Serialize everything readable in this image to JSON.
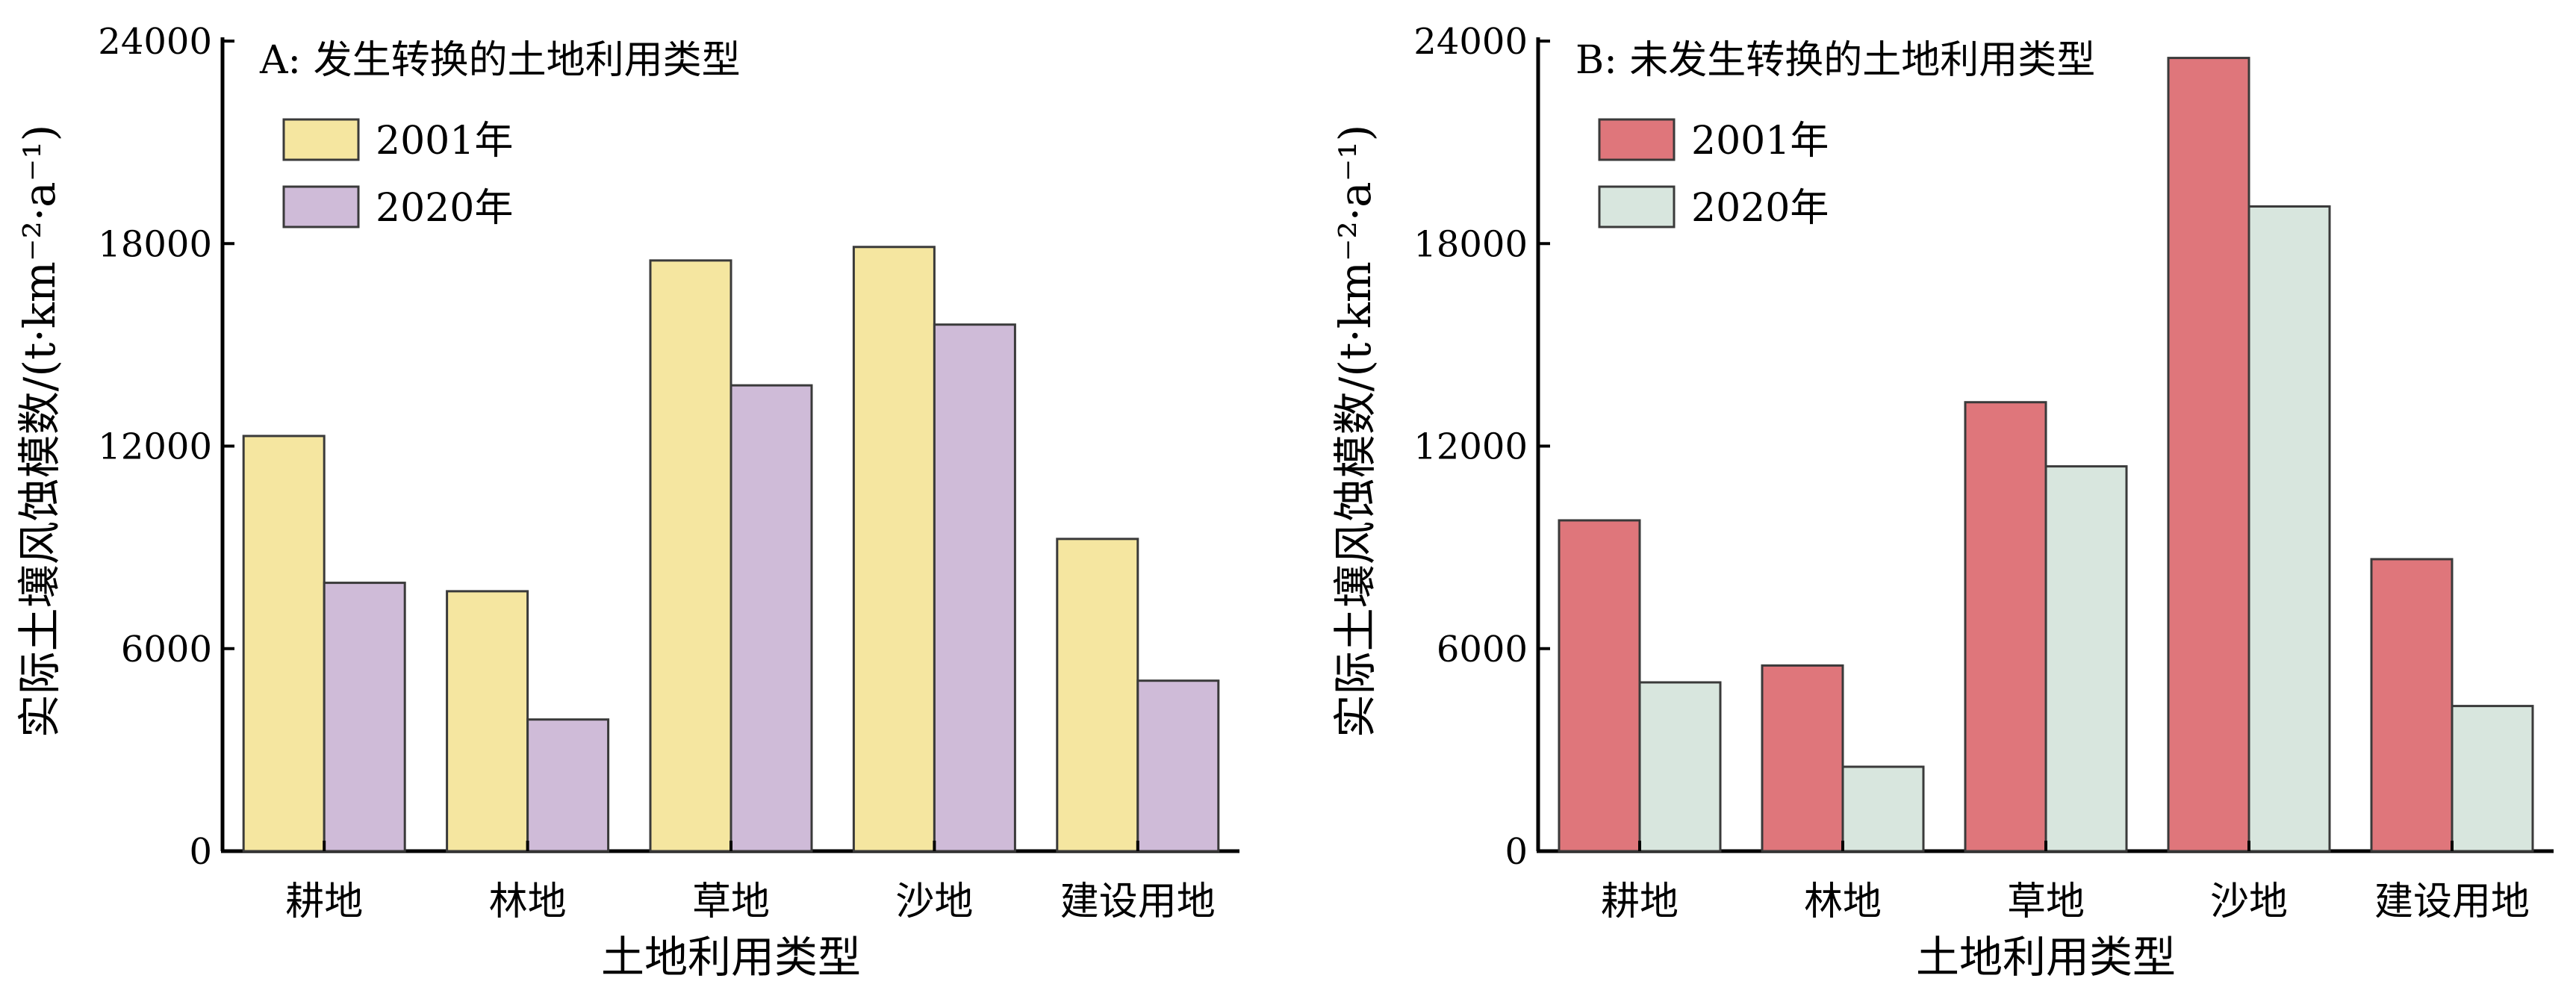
{
  "chart_data": [
    {
      "type": "bar",
      "title": "A: 发生转换的土地利用类型",
      "xlabel": "土地利用类型",
      "ylabel": "实际土壤风蚀模数/(t·km⁻²·a⁻¹)",
      "ylim": [
        0,
        24000
      ],
      "yticks": [
        "0",
        "6000",
        "12000",
        "18000",
        "24000"
      ],
      "categories": [
        "耕地",
        "林地",
        "草地",
        "沙地",
        "建设用地"
      ],
      "series": [
        {
          "name": "2001年",
          "color": "#f5e6a0",
          "values": [
            12300,
            7700,
            17500,
            17900,
            9250
          ]
        },
        {
          "name": "2020年",
          "color": "#cfbbd8",
          "values": [
            7950,
            3900,
            13800,
            15600,
            5050
          ]
        }
      ],
      "legend": "top-left",
      "grid": false
    },
    {
      "type": "bar",
      "title": "B: 未发生转换的土地利用类型",
      "xlabel": "土地利用类型",
      "ylabel": "实际土壤风蚀模数/(t·km⁻²·a⁻¹)",
      "ylim": [
        0,
        24000
      ],
      "yticks": [
        "0",
        "6000",
        "12000",
        "18000",
        "24000"
      ],
      "categories": [
        "耕地",
        "林地",
        "草地",
        "沙地",
        "建设用地"
      ],
      "series": [
        {
          "name": "2001年",
          "color": "#df767b",
          "values": [
            9800,
            5500,
            13300,
            23500,
            8650
          ]
        },
        {
          "name": "2020年",
          "color": "#d8e6de",
          "values": [
            5000,
            2500,
            11400,
            19100,
            4300
          ]
        }
      ],
      "legend": "top-left",
      "grid": false
    }
  ]
}
